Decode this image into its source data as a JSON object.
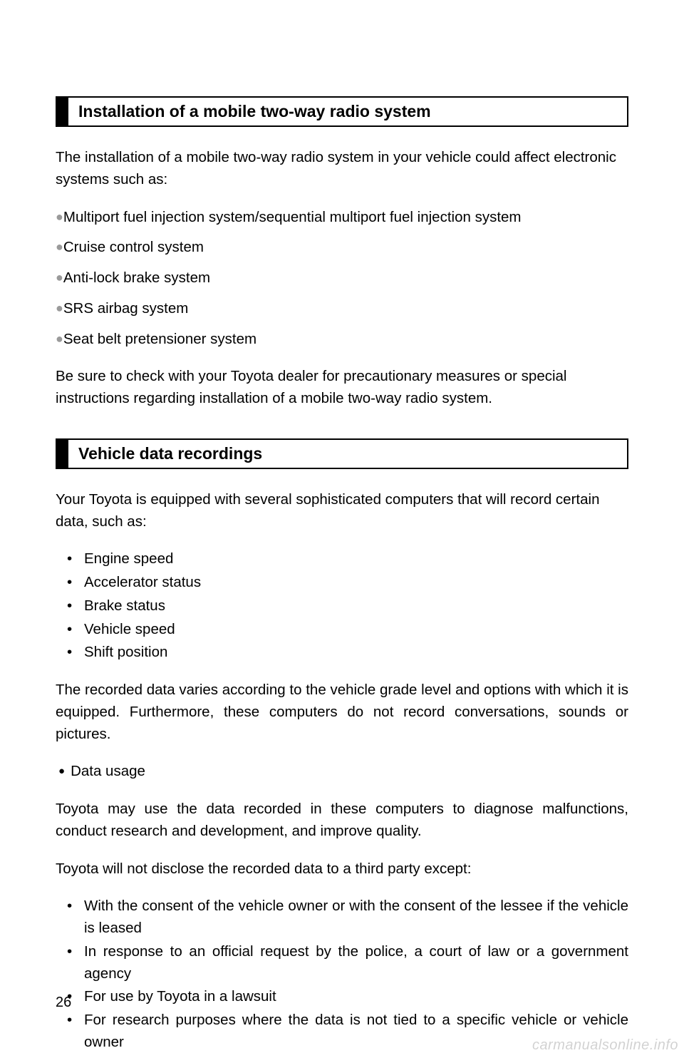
{
  "page_number": "26",
  "watermark": "carmanualsonline.info",
  "section1": {
    "title": "Installation of a mobile two-way radio system",
    "intro": "The installation of a mobile two-way radio system in your vehicle could affect electronic systems such as:",
    "items": [
      "Multiport fuel injection system/sequential multiport fuel injection system",
      "Cruise control system",
      "Anti-lock brake system",
      "SRS airbag system",
      "Seat belt pretensioner system"
    ],
    "outro": "Be sure to check with your Toyota dealer for precautionary measures or special instructions regarding installation of a mobile two-way radio system."
  },
  "section2": {
    "title": "Vehicle data recordings",
    "intro": "Your Toyota is equipped with several sophisticated computers that will record certain data, such as:",
    "data_items": [
      "Engine speed",
      "Accelerator status",
      "Brake status",
      "Vehicle speed",
      "Shift position"
    ],
    "varies": "The recorded data varies according to the vehicle grade level and options with which it is equipped. Furthermore, these computers do not record conversations, sounds or pictures.",
    "subhead": "Data usage",
    "usage1": "Toyota may use the data recorded in these computers to diagnose malfunctions, conduct research and development, and improve quality.",
    "usage2": "Toyota will not disclose the recorded data to a third party except:",
    "except_items": [
      "With the consent of the vehicle owner or with the consent of the lessee if the vehicle is leased",
      "In response to an official request by the police, a court of law or a government agency",
      "For use by Toyota in a lawsuit",
      "For research purposes where the data is not tied to a specific vehicle or vehicle owner"
    ]
  }
}
